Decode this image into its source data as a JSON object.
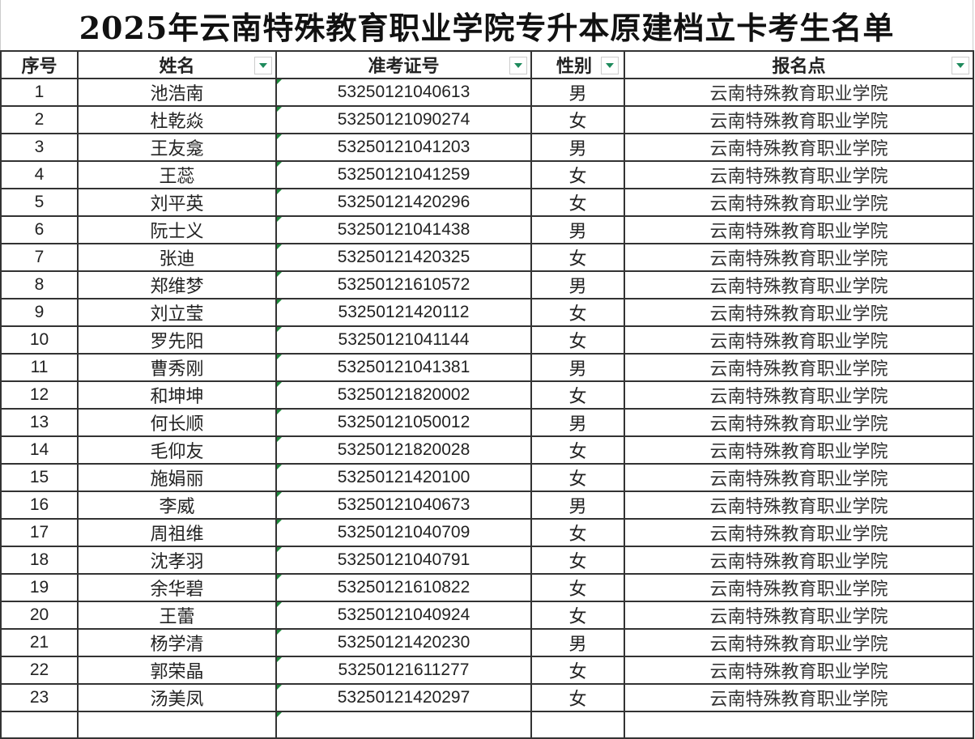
{
  "title": "2025年云南特殊教育职业学院专升本原建档立卡考生名单",
  "headers": {
    "seq": "序号",
    "name": "姓名",
    "exam_id": "准考证号",
    "gender": "性别",
    "site": "报名点"
  },
  "rows": [
    {
      "seq": "1",
      "name": "池浩南",
      "exam_id": "53250121040613",
      "gender": "男",
      "site": "云南特殊教育职业学院"
    },
    {
      "seq": "2",
      "name": "杜乾焱",
      "exam_id": "53250121090274",
      "gender": "女",
      "site": "云南特殊教育职业学院"
    },
    {
      "seq": "3",
      "name": "王友龛",
      "exam_id": "53250121041203",
      "gender": "男",
      "site": "云南特殊教育职业学院"
    },
    {
      "seq": "4",
      "name": "王蕊",
      "exam_id": "53250121041259",
      "gender": "女",
      "site": "云南特殊教育职业学院"
    },
    {
      "seq": "5",
      "name": "刘平英",
      "exam_id": "53250121420296",
      "gender": "女",
      "site": "云南特殊教育职业学院"
    },
    {
      "seq": "6",
      "name": "阮士义",
      "exam_id": "53250121041438",
      "gender": "男",
      "site": "云南特殊教育职业学院"
    },
    {
      "seq": "7",
      "name": "张迪",
      "exam_id": "53250121420325",
      "gender": "女",
      "site": "云南特殊教育职业学院"
    },
    {
      "seq": "8",
      "name": "郑维梦",
      "exam_id": "53250121610572",
      "gender": "男",
      "site": "云南特殊教育职业学院"
    },
    {
      "seq": "9",
      "name": "刘立莹",
      "exam_id": "53250121420112",
      "gender": "女",
      "site": "云南特殊教育职业学院"
    },
    {
      "seq": "10",
      "name": "罗先阳",
      "exam_id": "53250121041144",
      "gender": "女",
      "site": "云南特殊教育职业学院"
    },
    {
      "seq": "11",
      "name": "曹秀刚",
      "exam_id": "53250121041381",
      "gender": "男",
      "site": "云南特殊教育职业学院"
    },
    {
      "seq": "12",
      "name": "和坤坤",
      "exam_id": "53250121820002",
      "gender": "女",
      "site": "云南特殊教育职业学院"
    },
    {
      "seq": "13",
      "name": "何长顺",
      "exam_id": "53250121050012",
      "gender": "男",
      "site": "云南特殊教育职业学院"
    },
    {
      "seq": "14",
      "name": "毛仰友",
      "exam_id": "53250121820028",
      "gender": "女",
      "site": "云南特殊教育职业学院"
    },
    {
      "seq": "15",
      "name": "施娟丽",
      "exam_id": "53250121420100",
      "gender": "女",
      "site": "云南特殊教育职业学院"
    },
    {
      "seq": "16",
      "name": "李威",
      "exam_id": "53250121040673",
      "gender": "男",
      "site": "云南特殊教育职业学院"
    },
    {
      "seq": "17",
      "name": "周祖维",
      "exam_id": "53250121040709",
      "gender": "女",
      "site": "云南特殊教育职业学院"
    },
    {
      "seq": "18",
      "name": "沈孝羽",
      "exam_id": "53250121040791",
      "gender": "女",
      "site": "云南特殊教育职业学院"
    },
    {
      "seq": "19",
      "name": "余华碧",
      "exam_id": "53250121610822",
      "gender": "女",
      "site": "云南特殊教育职业学院"
    },
    {
      "seq": "20",
      "name": "王蕾",
      "exam_id": "53250121040924",
      "gender": "女",
      "site": "云南特殊教育职业学院"
    },
    {
      "seq": "21",
      "name": "杨学清",
      "exam_id": "53250121420230",
      "gender": "男",
      "site": "云南特殊教育职业学院"
    },
    {
      "seq": "22",
      "name": "郭荣晶",
      "exam_id": "53250121611277",
      "gender": "女",
      "site": "云南特殊教育职业学院"
    },
    {
      "seq": "23",
      "name": "汤美凤",
      "exam_id": "53250121420297",
      "gender": "女",
      "site": "云南特殊教育职业学院"
    }
  ],
  "colors": {
    "filter_arrow": "#1e8a5c",
    "cell_marker": "#1e8a3c",
    "border": "#333333"
  }
}
